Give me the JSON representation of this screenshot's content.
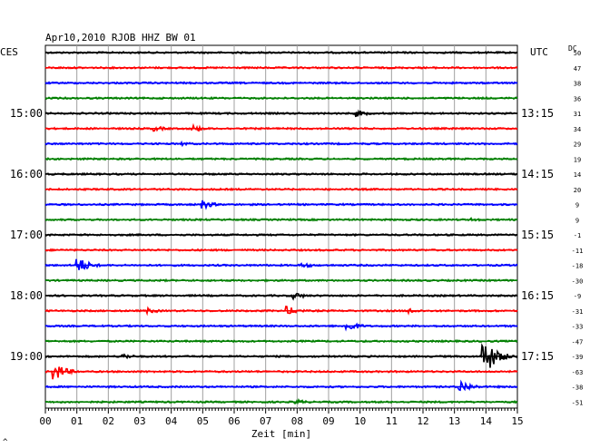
{
  "chart_data": {
    "type": "line",
    "title": "Apr10,2010   RJOB HHZ BW 01",
    "left_label": "CES",
    "right_label": "UTC",
    "offset_label": "DC",
    "xlabel": "Zeit [min]",
    "corner_mark": "^",
    "xlim": [
      0,
      15
    ],
    "x_ticks": [
      "00",
      "01",
      "02",
      "03",
      "04",
      "05",
      "06",
      "07",
      "08",
      "09",
      "10",
      "11",
      "12",
      "13",
      "14",
      "15"
    ],
    "grid": true,
    "trace_colors": [
      "#000000",
      "#ff0000",
      "#0000ff",
      "#007f00"
    ],
    "left_hour_labels": [
      {
        "row": 4,
        "text": "15:00"
      },
      {
        "row": 8,
        "text": "16:00"
      },
      {
        "row": 12,
        "text": "17:00"
      },
      {
        "row": 16,
        "text": "18:00"
      },
      {
        "row": 20,
        "text": "19:00"
      }
    ],
    "right_hour_labels": [
      {
        "row": 4,
        "text": "13:15"
      },
      {
        "row": 8,
        "text": "14:15"
      },
      {
        "row": 12,
        "text": "15:15"
      },
      {
        "row": 16,
        "text": "16:15"
      },
      {
        "row": 20,
        "text": "17:15"
      }
    ],
    "dc_offsets": [
      "50",
      "47",
      "38",
      "36",
      "31",
      "34",
      "29",
      "19",
      "14",
      "20",
      "9",
      "9",
      "-1",
      "-11",
      "-18",
      "-30",
      "-9",
      "-31",
      "-33",
      "-47",
      "-39",
      "-63",
      "-38",
      "-51"
    ],
    "events": [
      {
        "row": 4,
        "minute": 9.9,
        "amp": 4
      },
      {
        "row": 5,
        "minute": 3.5,
        "amp": 3
      },
      {
        "row": 5,
        "minute": 4.7,
        "amp": 4
      },
      {
        "row": 6,
        "minute": 4.4,
        "amp": 2
      },
      {
        "row": 10,
        "minute": 5.0,
        "amp": 5
      },
      {
        "row": 11,
        "minute": 13.6,
        "amp": 2
      },
      {
        "row": 14,
        "minute": 1.05,
        "amp": 9
      },
      {
        "row": 14,
        "minute": 8.2,
        "amp": 3
      },
      {
        "row": 16,
        "minute": 7.9,
        "amp": 4
      },
      {
        "row": 17,
        "minute": 7.7,
        "amp": 5
      },
      {
        "row": 17,
        "minute": 3.3,
        "amp": 3
      },
      {
        "row": 17,
        "minute": 11.6,
        "amp": 3
      },
      {
        "row": 18,
        "minute": 9.6,
        "amp": 6
      },
      {
        "row": 20,
        "minute": 2.5,
        "amp": 3
      },
      {
        "row": 20,
        "minute": 13.95,
        "amp": 22
      },
      {
        "row": 21,
        "minute": 0.3,
        "amp": 10
      },
      {
        "row": 22,
        "minute": 13.2,
        "amp": 7
      },
      {
        "row": 23,
        "minute": 8.0,
        "amp": 3
      }
    ]
  }
}
